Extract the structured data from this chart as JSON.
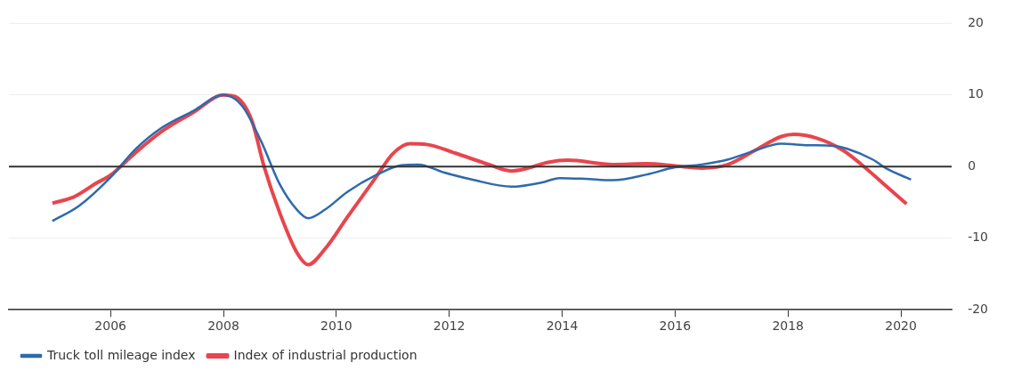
{
  "chart_data": {
    "type": "line",
    "xlim": [
      2004.2,
      2020.9
    ],
    "xticks": [
      2006,
      2008,
      2010,
      2012,
      2014,
      2016,
      2018,
      2020
    ],
    "ylim": [
      -20,
      20
    ],
    "yticks": [
      -20,
      -10,
      0,
      10,
      20
    ],
    "grid": "y",
    "legend": "bottom left",
    "marker": "none",
    "line_style": "solid",
    "ref_lines": [
      {
        "axis": "y",
        "value": 0,
        "color": "#333333"
      }
    ],
    "series": [
      {
        "name": "Truck toll mileage index",
        "color": "#2e6aad",
        "x": [
          2004.97,
          2005.44,
          2006,
          2006.45,
          2006.92,
          2007.47,
          2008,
          2008.33,
          2008.67,
          2009,
          2009.3,
          2009.5,
          2009.8,
          2010.2,
          2010.7,
          2011.15,
          2011.45,
          2011.9,
          2012.4,
          2013.1,
          2013.65,
          2013.95,
          2014.4,
          2014.9,
          2015.5,
          2016,
          2016.47,
          2016.94,
          2017.4,
          2017.88,
          2018.35,
          2018.8,
          2019.05,
          2019.5,
          2019.75,
          2020.18
        ],
        "values": [
          -7.6,
          -5.5,
          -1.5,
          2.5,
          5.5,
          7.8,
          10,
          8.5,
          3.5,
          -2.5,
          -6,
          -7.2,
          -6,
          -3.5,
          -1.2,
          0.2,
          0.3,
          -0.8,
          -1.8,
          -2.8,
          -2.2,
          -1.6,
          -1.7,
          -1.9,
          -1.1,
          -0.1,
          0.3,
          1,
          2.2,
          3.2,
          3,
          2.9,
          2.5,
          1,
          -0.3,
          -1.8
        ]
      },
      {
        "name": "Index of industrial production",
        "color": "#e8454d",
        "x": [
          2004.97,
          2005.36,
          2005.75,
          2006,
          2006.45,
          2006.92,
          2007.47,
          2008,
          2008.2,
          2008.5,
          2008.72,
          2009,
          2009.3,
          2009.5,
          2009.8,
          2010.2,
          2010.7,
          2011,
          2011.3,
          2011.6,
          2012.1,
          2012.7,
          2013.1,
          2013.35,
          2013.75,
          2014.1,
          2014.9,
          2015.5,
          2016,
          2016.47,
          2016.94,
          2017.4,
          2017.88,
          2018.1,
          2018.5,
          2018.97,
          2019.45,
          2019.75,
          2020.1
        ],
        "values": [
          -5.1,
          -4.2,
          -2.3,
          -1.2,
          2,
          5,
          7.6,
          10,
          9.8,
          6.5,
          0,
          -6.5,
          -12,
          -13.7,
          -11.5,
          -7,
          -1.5,
          1.8,
          3.2,
          3.1,
          1.9,
          0.3,
          -0.6,
          -0.3,
          0.6,
          0.9,
          0.3,
          0.4,
          0.1,
          -0.2,
          0.3,
          2.2,
          4.2,
          4.5,
          4,
          2.3,
          -0.7,
          -2.8,
          -5.2
        ]
      }
    ]
  }
}
